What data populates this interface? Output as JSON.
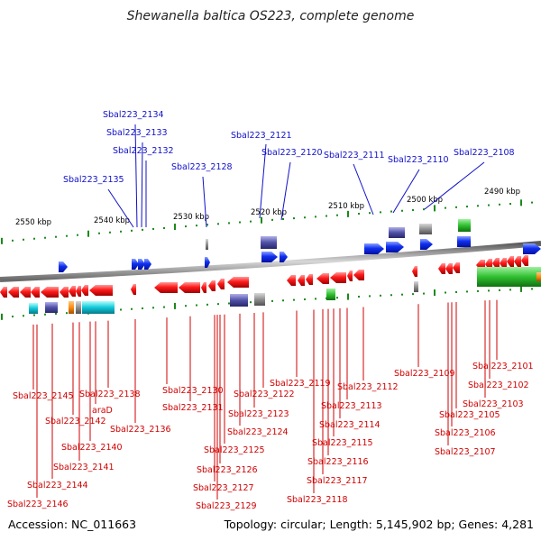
{
  "title": "Shewanella baltica OS223, complete genome",
  "footer": {
    "accession": "Accession: NC_011663",
    "topology": "Topology: circular; Length: 5,145,902 bp; Genes: 4,281"
  },
  "scale_labels": [
    "2550 kbp",
    "2540 kbp",
    "2530 kbp",
    "2520 kbp",
    "2510 kbp",
    "2500 kbp",
    "2490 kbp"
  ],
  "top_genes": [
    "Sbal223_2134",
    "Sbal223_2133",
    "Sbal223_2132",
    "Sbal223_2135",
    "Sbal223_2128",
    "Sbal223_2121",
    "Sbal223_2120",
    "Sbal223_2111",
    "Sbal223_2110",
    "Sbal223_2108"
  ],
  "bottom_genes": [
    "Sbal223_2145",
    "Sbal223_2146",
    "Sbal223_2144",
    "Sbal223_2142",
    "Sbal223_2141",
    "Sbal223_2140",
    "araD",
    "Sbal223_2138",
    "Sbal223_2136",
    "Sbal223_2131",
    "Sbal223_2130",
    "Sbal223_2129",
    "Sbal223_2127",
    "Sbal223_2126",
    "Sbal223_2125",
    "Sbal223_2124",
    "Sbal223_2123",
    "Sbal223_2122",
    "Sbal223_2119",
    "Sbal223_2118",
    "Sbal223_2117",
    "Sbal223_2116",
    "Sbal223_2115",
    "Sbal223_2114",
    "Sbal223_2113",
    "Sbal223_2112",
    "Sbal223_2109",
    "Sbal223_2107",
    "Sbal223_2106",
    "Sbal223_2105",
    "Sbal223_2103",
    "Sbal223_2102",
    "Sbal223_2101"
  ],
  "colors": {
    "top_label": "#1010c8",
    "bottom_label": "#d00000",
    "forward_gene": "#0a2ef0",
    "reverse_gene": "#f01010",
    "backbone": "#8c8c8c",
    "tick": "#1a8a1a"
  }
}
